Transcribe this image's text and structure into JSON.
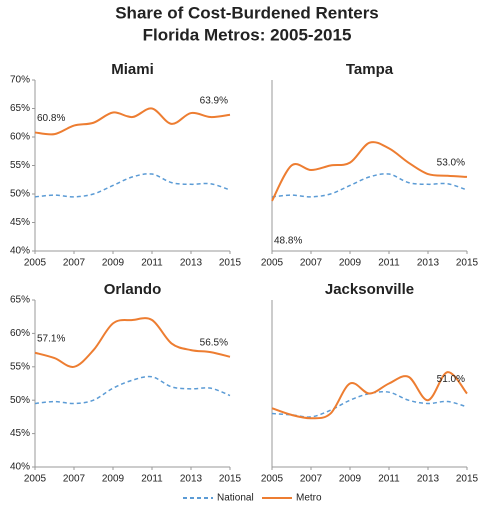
{
  "title": [
    "Share of Cost-Burdened Renters",
    "Florida Metros: 2005-2015"
  ],
  "chart_data": [
    {
      "type": "line",
      "title": "Miami",
      "x": [
        2005,
        2006,
        2007,
        2008,
        2009,
        2010,
        2011,
        2012,
        2013,
        2014,
        2015
      ],
      "series": [
        {
          "name": "National",
          "color": "#5b9bd5",
          "dashed": true,
          "values": [
            49.5,
            49.8,
            49.5,
            50,
            51.5,
            53,
            53.5,
            52,
            51.7,
            51.8,
            50.7
          ]
        },
        {
          "name": "Metro",
          "color": "#ed7d31",
          "values": [
            60.8,
            60.5,
            62,
            62.5,
            64.3,
            63.5,
            65,
            62.3,
            64.2,
            63.5,
            63.9
          ],
          "value_labels": [
            "60.8%",
            null,
            null,
            null,
            null,
            null,
            null,
            null,
            null,
            null,
            "63.9%"
          ]
        }
      ],
      "xlim": [
        2005,
        2015
      ],
      "xticks": [
        2005,
        2007,
        2009,
        2011,
        2013,
        2015
      ],
      "ylim": [
        40,
        70
      ],
      "yticks": [
        {
          "value": 40,
          "label": "40%"
        },
        {
          "value": 45,
          "label": "45%"
        },
        {
          "value": 50,
          "label": "50%"
        },
        {
          "value": 55,
          "label": "55%"
        },
        {
          "value": 60,
          "label": "60%"
        },
        {
          "value": 65,
          "label": "65%"
        },
        {
          "value": 70,
          "label": "70%"
        }
      ]
    },
    {
      "type": "line",
      "title": "Tampa",
      "x": [
        2005,
        2006,
        2007,
        2008,
        2009,
        2010,
        2011,
        2012,
        2013,
        2014,
        2015
      ],
      "series": [
        {
          "name": "National",
          "color": "#5b9bd5",
          "dashed": true,
          "values": [
            49.5,
            49.8,
            49.5,
            50,
            51.5,
            53,
            53.5,
            52,
            51.7,
            51.8,
            50.7
          ]
        },
        {
          "name": "Metro",
          "color": "#ed7d31",
          "values": [
            48.8,
            55,
            54.2,
            55,
            55.5,
            59,
            58,
            55.5,
            53.5,
            53.2,
            53.0
          ],
          "value_labels": [
            "48.8%",
            null,
            null,
            null,
            null,
            null,
            null,
            null,
            null,
            null,
            "53.0%"
          ]
        }
      ],
      "xlim": [
        2005,
        2015
      ],
      "xticks": [
        2005,
        2007,
        2009,
        2011,
        2013,
        2015
      ],
      "ylim": [
        40,
        70
      ]
    },
    {
      "type": "line",
      "title": "Orlando",
      "x": [
        2005,
        2006,
        2007,
        2008,
        2009,
        2010,
        2011,
        2012,
        2013,
        2014,
        2015
      ],
      "series": [
        {
          "name": "National",
          "color": "#5b9bd5",
          "dashed": true,
          "values": [
            49.5,
            49.8,
            49.5,
            50,
            51.8,
            53,
            53.5,
            52,
            51.7,
            51.8,
            50.7
          ]
        },
        {
          "name": "Metro",
          "color": "#ed7d31",
          "values": [
            57.1,
            56.3,
            55,
            57.5,
            61.5,
            62,
            62,
            58.5,
            57.5,
            57.2,
            56.5
          ],
          "value_labels": [
            "57.1%",
            null,
            null,
            null,
            null,
            null,
            null,
            null,
            null,
            null,
            "56.5%"
          ]
        }
      ],
      "xlim": [
        2005,
        2015
      ],
      "xticks": [
        2005,
        2007,
        2009,
        2011,
        2013,
        2015
      ],
      "ylim": [
        40,
        65
      ],
      "yticks": [
        {
          "value": 40,
          "label": "40%"
        },
        {
          "value": 45,
          "label": "45%"
        },
        {
          "value": 50,
          "label": "50%"
        },
        {
          "value": 55,
          "label": "55%"
        },
        {
          "value": 60,
          "label": "60%"
        },
        {
          "value": 65,
          "label": "65%"
        }
      ]
    },
    {
      "type": "line",
      "title": "Jacksonville",
      "x": [
        2005,
        2006,
        2007,
        2008,
        2009,
        2010,
        2011,
        2012,
        2013,
        2014,
        2015
      ],
      "series": [
        {
          "name": "National",
          "color": "#5b9bd5",
          "dashed": true,
          "values": [
            48,
            47.8,
            47.5,
            48.5,
            50,
            51,
            51.2,
            50,
            49.5,
            49.8,
            49
          ]
        },
        {
          "name": "Metro",
          "color": "#ed7d31",
          "values": [
            48.8,
            47.8,
            47.3,
            48,
            52.5,
            51,
            52.5,
            53.5,
            50,
            54.2,
            51.0
          ],
          "value_labels": [
            null,
            null,
            null,
            null,
            null,
            null,
            null,
            null,
            null,
            null,
            "51.0%"
          ]
        }
      ],
      "xlim": [
        2005,
        2015
      ],
      "xticks": [
        2005,
        2007,
        2009,
        2011,
        2013,
        2015
      ],
      "ylim": [
        40,
        65
      ]
    }
  ]
}
